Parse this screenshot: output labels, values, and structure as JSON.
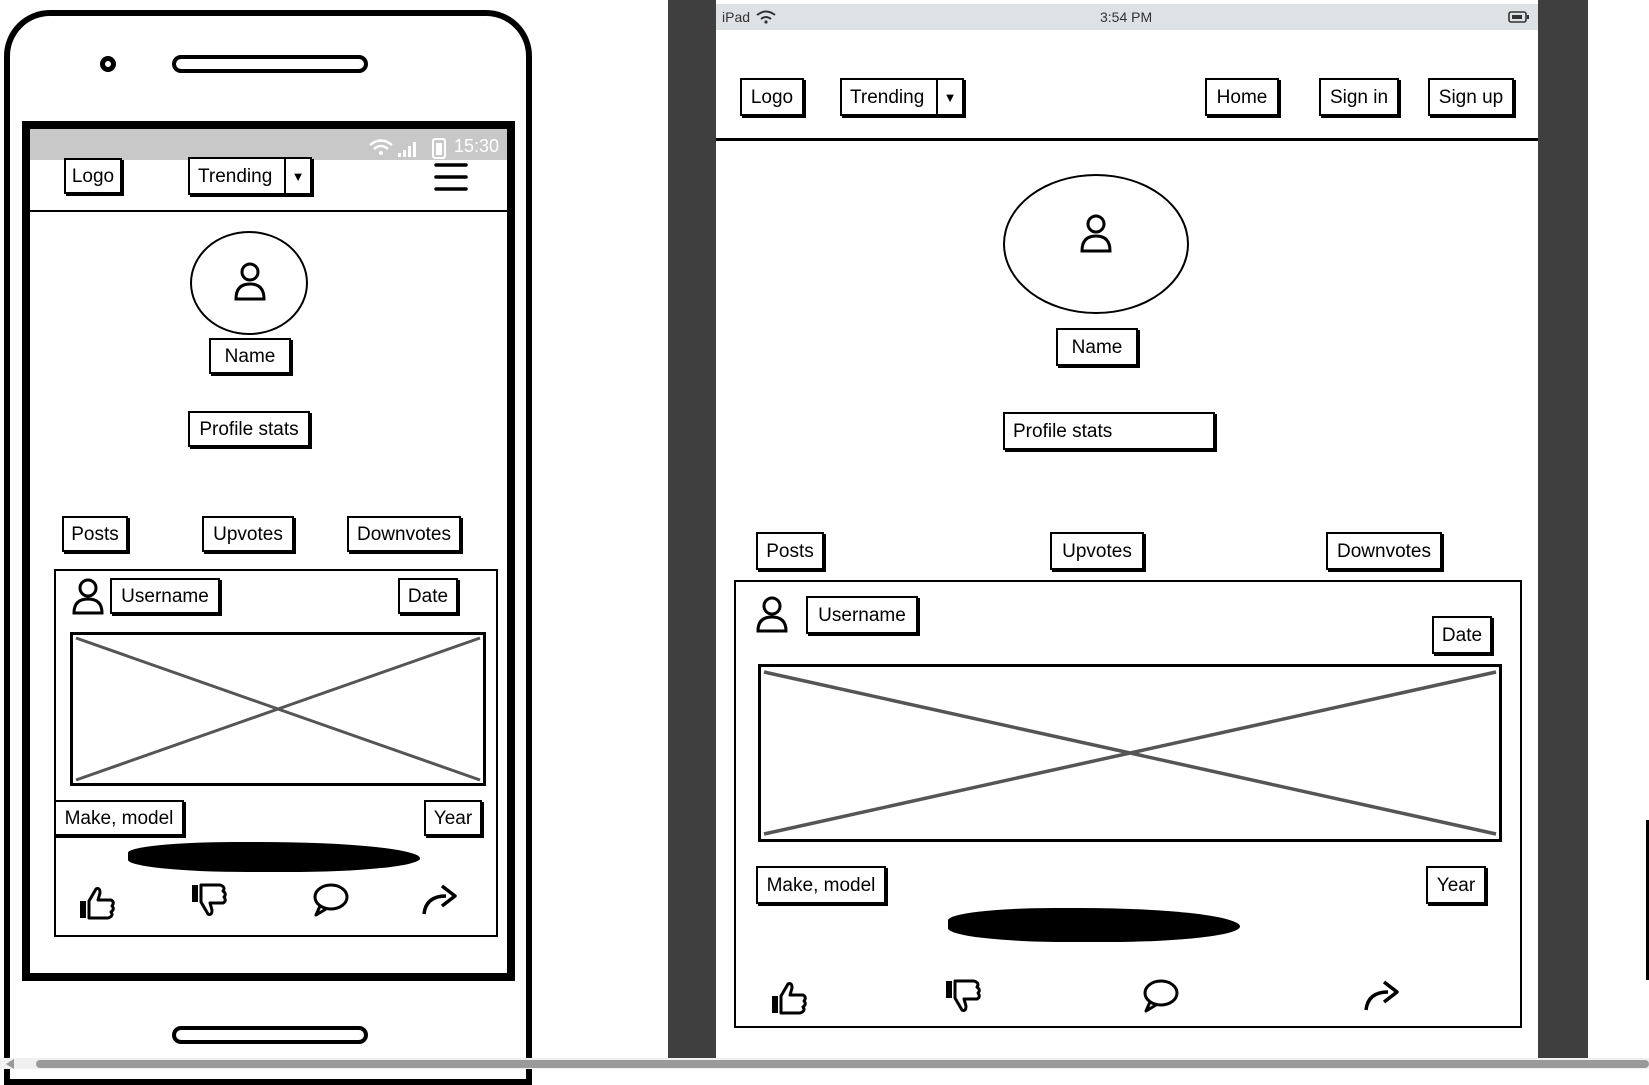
{
  "phone": {
    "status_time": "15:30",
    "nav": {
      "logo": "Logo",
      "trending": "Trending"
    },
    "profile": {
      "name": "Name",
      "stats": "Profile stats"
    },
    "tabs": [
      "Posts",
      "Upvotes",
      "Downvotes"
    ],
    "post": {
      "username": "Username",
      "date": "Date",
      "make_model": "Make, model",
      "year": "Year"
    }
  },
  "tablet": {
    "status": {
      "device": "iPad",
      "time": "3:54 PM"
    },
    "nav": {
      "logo": "Logo",
      "trending": "Trending",
      "home": "Home",
      "sign_in": "Sign in",
      "sign_up": "Sign up"
    },
    "profile": {
      "name": "Name",
      "stats": "Profile stats"
    },
    "tabs": [
      "Posts",
      "Upvotes",
      "Downvotes"
    ],
    "post": {
      "username": "Username",
      "date": "Date",
      "make_model": "Make, model",
      "year": "Year"
    }
  }
}
